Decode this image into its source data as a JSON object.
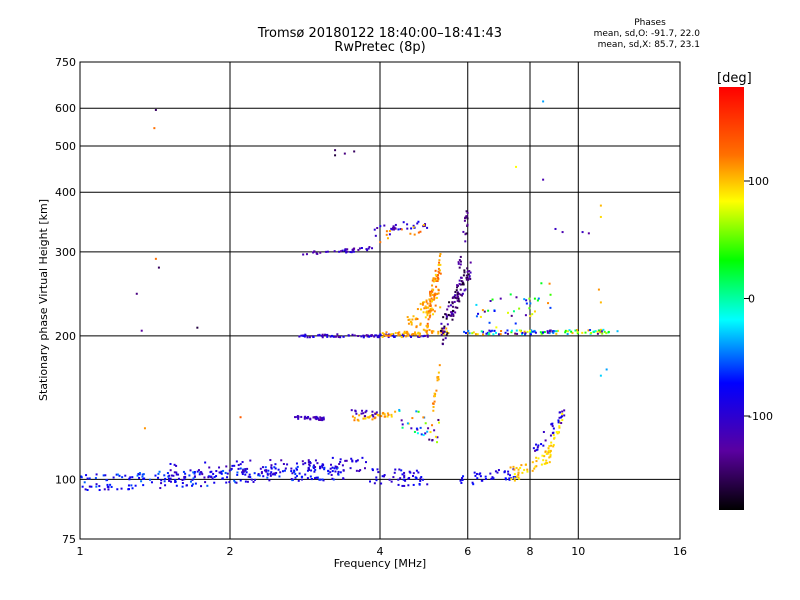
{
  "chart_data": {
    "type": "scatter",
    "title": "Tromsø 20180122 18:40:00–18:41:43",
    "subtitle": "RwPretec (8p)",
    "xlabel": "Frequency [MHz]",
    "ylabel": "Stationary phase Virtual Height [km]",
    "x_scale": "log",
    "y_scale": "log",
    "xlim": [
      1,
      16
    ],
    "ylim": [
      75,
      750
    ],
    "x_ticks": [
      1,
      2,
      4,
      6,
      8,
      10,
      16
    ],
    "x_tick_labels": [
      "1",
      "2",
      "4",
      "6",
      "8",
      "10",
      "16"
    ],
    "y_ticks": [
      75,
      100,
      200,
      300,
      400,
      500,
      600,
      750
    ],
    "y_tick_labels": [
      "75",
      "100",
      "200",
      "300",
      "400",
      "500",
      "600",
      "750"
    ],
    "grid": true,
    "colorbar": {
      "label": "[deg]",
      "range": [
        -180,
        180
      ],
      "ticks": [
        100,
        0,
        -100
      ],
      "tick_labels": [
        "100",
        "0",
        "-100"
      ]
    },
    "stats": {
      "title": "Phases",
      "o_mode": "mean, sd,O: -91.7, 22.0",
      "x_mode": "mean, sd,X:  85.7, 23.1"
    },
    "points": [
      [
        1.42,
        595,
        -150
      ],
      [
        1.41,
        545,
        120
      ],
      [
        1.3,
        245,
        -140
      ],
      [
        1.33,
        205,
        -130
      ],
      [
        1.44,
        278,
        -150
      ],
      [
        1.72,
        208,
        -160
      ],
      [
        1.42,
        290,
        120
      ],
      [
        3.25,
        490,
        -150
      ],
      [
        3.25,
        478,
        -160
      ],
      [
        3.4,
        482,
        -140
      ],
      [
        3.55,
        487,
        -150
      ],
      [
        8.5,
        620,
        -40
      ],
      [
        8.5,
        425,
        -120
      ],
      [
        7.5,
        452,
        80
      ],
      [
        9.0,
        335,
        -110
      ],
      [
        9.3,
        330,
        -120
      ],
      [
        10.2,
        330,
        -110
      ],
      [
        10.5,
        328,
        -130
      ],
      [
        11.1,
        375,
        100
      ],
      [
        11.1,
        355,
        90
      ],
      [
        11.0,
        250,
        110
      ],
      [
        11.1,
        235,
        100
      ],
      [
        11.4,
        170,
        -40
      ],
      [
        11.1,
        165,
        -30
      ],
      [
        2.1,
        135,
        130
      ],
      [
        1.35,
        128,
        110
      ]
    ],
    "traces": [
      {
        "name": "E-trace",
        "f0": 0.98,
        "f1": 3.4,
        "h0": 98,
        "h1": 104,
        "spread": 4,
        "n": 260,
        "cmin": -110,
        "cmax": -50
      },
      {
        "name": "E-upper",
        "f0": 1.5,
        "f1": 3.8,
        "h0": 104,
        "h1": 108,
        "spread": 4,
        "n": 100,
        "cmin": -120,
        "cmax": -80
      },
      {
        "name": "E-right",
        "f0": 3.8,
        "f1": 5.0,
        "h0": 102,
        "h1": 100,
        "spread": 4,
        "n": 50,
        "cmin": -110,
        "cmax": -70
      },
      {
        "name": "Es-mid",
        "f0": 5.8,
        "f1": 7.5,
        "h0": 100,
        "h1": 103,
        "spread": 3,
        "n": 40,
        "cmin": -100,
        "cmax": -70
      },
      {
        "name": "Es-x",
        "f0": 7.3,
        "f1": 8.8,
        "h0": 102,
        "h1": 112,
        "spread": 4,
        "n": 45,
        "cmin": 80,
        "cmax": 110
      },
      {
        "name": "Es-x-rise",
        "f0": 8.6,
        "f1": 9.3,
        "h0": 108,
        "h1": 135,
        "spread": 4,
        "n": 30,
        "cmin": 80,
        "cmax": 100
      },
      {
        "name": "Es-o-rise",
        "f0": 8.0,
        "f1": 9.4,
        "h0": 110,
        "h1": 138,
        "spread": 5,
        "n": 30,
        "cmin": -130,
        "cmax": -70
      },
      {
        "name": "Es2-o",
        "f0": 2.7,
        "f1": 3.1,
        "h0": 135,
        "h1": 134,
        "spread": 1,
        "n": 40,
        "cmin": -130,
        "cmax": -100
      },
      {
        "name": "Es2-x",
        "f0": 3.5,
        "f1": 4.3,
        "h0": 134,
        "h1": 137,
        "spread": 2,
        "n": 35,
        "cmin": 90,
        "cmax": 120
      },
      {
        "name": "Es2-o-b",
        "f0": 3.5,
        "f1": 4.0,
        "h0": 138,
        "h1": 137,
        "spread": 2,
        "n": 15,
        "cmin": -120,
        "cmax": -100
      },
      {
        "name": "Es2-scatter",
        "f0": 4.3,
        "f1": 5.3,
        "h0": 138,
        "h1": 125,
        "spread": 8,
        "n": 35,
        "cmin": -150,
        "cmax": 120
      },
      {
        "name": "Es2-x-rise",
        "f0": 5.1,
        "f1": 5.3,
        "h0": 140,
        "h1": 175,
        "spread": 4,
        "n": 18,
        "cmin": 90,
        "cmax": 120
      },
      {
        "name": "F-o",
        "f0": 2.75,
        "f1": 5.0,
        "h0": 200,
        "h1": 200,
        "spread": 1.5,
        "n": 90,
        "cmin": -130,
        "cmax": -80
      },
      {
        "name": "F-x",
        "f0": 4.0,
        "f1": 5.5,
        "h0": 200,
        "h1": 205,
        "spread": 3,
        "n": 60,
        "cmin": 90,
        "cmax": 120
      },
      {
        "name": "F-cusp-x",
        "f0": 4.5,
        "f1": 5.3,
        "h0": 210,
        "h1": 240,
        "spread": 12,
        "n": 50,
        "cmin": 90,
        "cmax": 120
      },
      {
        "name": "F-cusp-x-up",
        "f0": 4.95,
        "f1": 5.3,
        "h0": 215,
        "h1": 285,
        "spread": 15,
        "n": 80,
        "cmin": 90,
        "cmax": 130
      },
      {
        "name": "F-cusp-o",
        "f0": 5.3,
        "f1": 6.1,
        "h0": 200,
        "h1": 280,
        "spread": 15,
        "n": 100,
        "cmin": -170,
        "cmax": -110
      },
      {
        "name": "F-o-upper",
        "f0": 5.7,
        "f1": 6.0,
        "h0": 250,
        "h1": 360,
        "spread": 20,
        "n": 25,
        "cmin": -160,
        "cmax": -120
      },
      {
        "name": "F-high",
        "f0": 5.8,
        "f1": 12.0,
        "h0": 203,
        "h1": 204,
        "spread": 2,
        "n": 110,
        "cmin": -150,
        "cmax": 120
      },
      {
        "name": "F-mid-scatter",
        "f0": 6.2,
        "f1": 9.0,
        "h0": 215,
        "h1": 245,
        "spread": 18,
        "n": 40,
        "cmin": -150,
        "cmax": 120
      },
      {
        "name": "F-rise-o",
        "f0": 3.3,
        "f1": 3.9,
        "h0": 300,
        "h1": 305,
        "spread": 3,
        "n": 25,
        "cmin": -130,
        "cmax": -90
      },
      {
        "name": "F-o-300",
        "f0": 2.8,
        "f1": 3.3,
        "h0": 298,
        "h1": 300,
        "spread": 2,
        "n": 12,
        "cmin": -130,
        "cmax": -100
      },
      {
        "name": "F-340",
        "f0": 3.9,
        "f1": 5.0,
        "h0": 330,
        "h1": 345,
        "spread": 8,
        "n": 30,
        "cmin": -140,
        "cmax": -80
      },
      {
        "name": "F-340-x",
        "f0": 3.9,
        "f1": 4.9,
        "h0": 320,
        "h1": 335,
        "spread": 8,
        "n": 12,
        "cmin": 90,
        "cmax": 130
      }
    ]
  }
}
